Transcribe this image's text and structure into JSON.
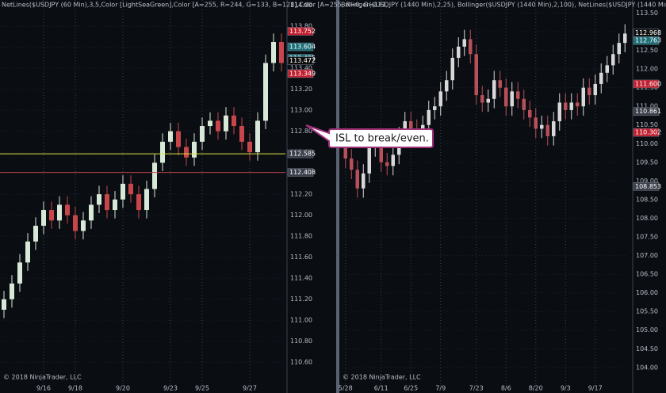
{
  "chart_data": [
    {
      "type": "candlestick",
      "title": "NetLines($USDJPY (60 Min),3,5,Color [LightSeaGreen],Color [A=255, R=244, G=133, B=128],Color [A=255, R=0, G=131,",
      "footer": "© 2018 NinjaTrader, LLC",
      "up_color": "#d8e8d8",
      "down_color": "#c8464b",
      "categories": [
        null,
        null,
        null,
        null,
        null,
        "9/16",
        null,
        null,
        null,
        "9/18",
        null,
        null,
        null,
        null,
        null,
        "9/20",
        null,
        null,
        null,
        null,
        null,
        "9/23",
        null,
        null,
        null,
        "9/25",
        null,
        null,
        null,
        null,
        null,
        "9/27",
        null,
        null,
        null,
        null
      ],
      "open": [
        111.1,
        111.2,
        111.35,
        111.55,
        111.75,
        111.9,
        112.05,
        111.95,
        112.1,
        112.0,
        111.85,
        111.95,
        112.1,
        112.2,
        112.05,
        112.15,
        112.3,
        112.2,
        112.05,
        112.25,
        112.5,
        112.7,
        112.8,
        112.65,
        112.55,
        112.7,
        112.85,
        112.9,
        112.8,
        112.95,
        112.85,
        112.7,
        112.6,
        112.9,
        113.45,
        113.65
      ],
      "high": [
        111.28,
        111.43,
        111.63,
        111.83,
        111.98,
        112.13,
        112.13,
        112.18,
        112.18,
        112.08,
        112.03,
        112.18,
        112.28,
        112.28,
        112.23,
        112.38,
        112.38,
        112.28,
        112.33,
        112.58,
        112.78,
        112.88,
        112.88,
        112.73,
        112.78,
        112.93,
        112.98,
        112.98,
        113.03,
        113.03,
        112.93,
        112.78,
        112.98,
        113.53,
        113.73,
        113.73
      ],
      "low": [
        111.02,
        111.12,
        111.27,
        111.47,
        111.67,
        111.82,
        111.87,
        111.87,
        111.92,
        111.77,
        111.77,
        111.87,
        112.02,
        111.97,
        111.97,
        112.07,
        112.12,
        111.97,
        111.97,
        112.17,
        112.42,
        112.62,
        112.57,
        112.47,
        112.47,
        112.62,
        112.77,
        112.72,
        112.72,
        112.77,
        112.62,
        112.52,
        112.52,
        112.82,
        113.37,
        113.37
      ],
      "close": [
        111.2,
        111.35,
        111.55,
        111.75,
        111.9,
        112.05,
        111.95,
        112.1,
        112.0,
        111.85,
        111.95,
        112.1,
        112.2,
        112.05,
        112.15,
        112.3,
        112.2,
        112.05,
        112.25,
        112.5,
        112.7,
        112.8,
        112.65,
        112.55,
        112.7,
        112.85,
        112.9,
        112.8,
        112.95,
        112.85,
        112.7,
        112.6,
        112.9,
        113.45,
        113.65,
        113.45
      ],
      "ylim": [
        110.39,
        114.05
      ],
      "yticks": [
        {
          "value": 110.6,
          "label": "110.60"
        },
        {
          "value": 110.8,
          "label": "110.80"
        },
        {
          "value": 111,
          "label": "111.00"
        },
        {
          "value": 111.2,
          "label": "111.20"
        },
        {
          "value": 111.4,
          "label": "111.40"
        },
        {
          "value": 111.6,
          "label": "111.60"
        },
        {
          "value": 111.8,
          "label": "111.80"
        },
        {
          "value": 112,
          "label": "112.00"
        },
        {
          "value": 112.2,
          "label": "112.20"
        },
        {
          "value": 112.4,
          "label": "112.40"
        },
        {
          "value": 112.6,
          "label": "112.60"
        },
        {
          "value": 112.8,
          "label": "112.80"
        },
        {
          "value": 113,
          "label": "113.00"
        },
        {
          "value": 113.2,
          "label": "113.20"
        },
        {
          "value": 113.4,
          "label": "113.40"
        },
        {
          "value": 113.6,
          "label": "113.60"
        },
        {
          "value": 113.8,
          "label": "113.80"
        },
        {
          "value": 114,
          "label": "114.00"
        }
      ],
      "price_markers": [
        {
          "value": 113.752,
          "color": "#c02030"
        },
        {
          "value": 113.604,
          "color": "#1d6f78"
        },
        {
          "value": 113.495,
          "color": "#1d6f78"
        },
        {
          "value": 113.472,
          "color": "#0d0d0d"
        },
        {
          "value": 113.349,
          "color": "#c02030"
        },
        {
          "value": 112.585,
          "color": "#3a3f4a",
          "line": "#e3e33a"
        },
        {
          "value": 112.408,
          "color": "#3a3f4a",
          "line": "#c0404a"
        }
      ]
    },
    {
      "type": "candlestick",
      "title": "Bollinger($USDJPY (1440 Min),2,25), Bollinger($USDJPY (1440 Min),2,100), NetLines($USDJPY (1440 Min),3,5,Color",
      "footer": "© 2018 NinjaTrader, LLC",
      "up_color": "#d8d8d8",
      "down_color": "#b8505a",
      "categories": [
        "5/28",
        null,
        null,
        null,
        null,
        null,
        "6/11",
        null,
        null,
        null,
        null,
        "6/25",
        null,
        null,
        null,
        null,
        "7/9",
        null,
        null,
        null,
        null,
        null,
        "7/23",
        null,
        null,
        null,
        null,
        "8/6",
        null,
        null,
        null,
        null,
        "8/20",
        null,
        null,
        null,
        null,
        "9/3",
        null,
        null,
        null,
        null,
        "9/17",
        null,
        null,
        null,
        null,
        null
      ],
      "open": [
        109.9,
        109.6,
        109.3,
        108.8,
        109.2,
        109.9,
        110.1,
        109.5,
        109.4,
        109.7,
        110.2,
        110.6,
        110.4,
        110.3,
        110.5,
        110.9,
        111.0,
        111.4,
        111.7,
        112.3,
        112.6,
        112.8,
        112.4,
        111.3,
        111.1,
        111.2,
        111.7,
        111.5,
        111.0,
        111.4,
        111.2,
        110.9,
        110.7,
        110.4,
        110.5,
        110.2,
        110.6,
        111.1,
        110.9,
        111.1,
        111.0,
        111.5,
        111.3,
        111.6,
        111.9,
        112.1,
        112.4,
        112.7
      ],
      "high": [
        110.15,
        109.85,
        109.55,
        109.45,
        110.15,
        110.35,
        110.35,
        109.75,
        109.95,
        110.45,
        110.85,
        110.85,
        110.65,
        110.75,
        111.15,
        111.25,
        111.65,
        111.95,
        112.55,
        112.85,
        113.05,
        113.05,
        112.65,
        111.55,
        111.45,
        111.95,
        111.95,
        111.75,
        111.65,
        111.65,
        111.45,
        111.15,
        110.95,
        110.75,
        110.75,
        110.85,
        111.35,
        111.35,
        111.35,
        111.35,
        111.75,
        111.75,
        111.85,
        112.15,
        112.35,
        112.65,
        112.95,
        113.2
      ],
      "low": [
        109.35,
        109.05,
        108.55,
        108.55,
        108.95,
        109.65,
        109.25,
        109.15,
        109.15,
        109.45,
        109.95,
        110.15,
        110.05,
        110.05,
        110.25,
        110.65,
        110.75,
        111.15,
        111.45,
        112.05,
        112.35,
        112.15,
        111.05,
        110.85,
        110.85,
        110.95,
        111.25,
        110.75,
        110.75,
        110.95,
        110.65,
        110.45,
        110.15,
        110.15,
        109.95,
        109.95,
        110.35,
        110.65,
        110.65,
        110.75,
        110.75,
        111.05,
        111.05,
        111.35,
        111.65,
        111.85,
        112.15,
        112.45
      ],
      "close": [
        109.6,
        109.3,
        108.8,
        109.2,
        109.9,
        110.1,
        109.5,
        109.4,
        109.7,
        110.2,
        110.6,
        110.4,
        110.3,
        110.5,
        110.9,
        111.0,
        111.4,
        111.7,
        112.3,
        112.6,
        112.8,
        112.4,
        111.3,
        111.1,
        111.2,
        111.7,
        111.5,
        111.0,
        111.4,
        111.2,
        110.9,
        110.7,
        110.4,
        110.5,
        110.2,
        110.6,
        111.1,
        110.9,
        111.1,
        111.0,
        111.5,
        111.3,
        111.6,
        111.9,
        112.1,
        112.4,
        112.7,
        112.95
      ],
      "ylim": [
        103.55,
        113.85
      ],
      "yticks": [
        {
          "value": 104,
          "label": "104.00"
        },
        {
          "value": 104.5,
          "label": "104.50"
        },
        {
          "value": 105,
          "label": "105.00"
        },
        {
          "value": 105.5,
          "label": "105.50"
        },
        {
          "value": 106,
          "label": "106.00"
        },
        {
          "value": 106.5,
          "label": "106.50"
        },
        {
          "value": 107,
          "label": "107.00"
        },
        {
          "value": 107.5,
          "label": "107.50"
        },
        {
          "value": 108,
          "label": "108.00"
        },
        {
          "value": 108.5,
          "label": "108.50"
        },
        {
          "value": 109,
          "label": "109.00"
        },
        {
          "value": 109.5,
          "label": "109.50"
        },
        {
          "value": 110,
          "label": "110.00"
        },
        {
          "value": 110.5,
          "label": "110.50"
        },
        {
          "value": 111,
          "label": "111.00"
        },
        {
          "value": 111.5,
          "label": "111.50"
        },
        {
          "value": 112,
          "label": "112.00"
        },
        {
          "value": 112.5,
          "label": "112.50"
        },
        {
          "value": 113,
          "label": "113.00"
        },
        {
          "value": 113.5,
          "label": "113.50"
        }
      ],
      "price_markers": [
        {
          "value": 112.968,
          "color": "#0d0d0d"
        },
        {
          "value": 112.763,
          "color": "#1d6f78"
        },
        {
          "value": 111.6,
          "label": "111.600",
          "color": "#c02030"
        },
        {
          "value": 110.861,
          "color": "#3a3f4a"
        },
        {
          "value": 110.302,
          "color": "#c02030"
        },
        {
          "value": 108.853,
          "color": "#3a3f4a"
        }
      ]
    }
  ],
  "annotation": {
    "text": "ISL to break/even."
  }
}
